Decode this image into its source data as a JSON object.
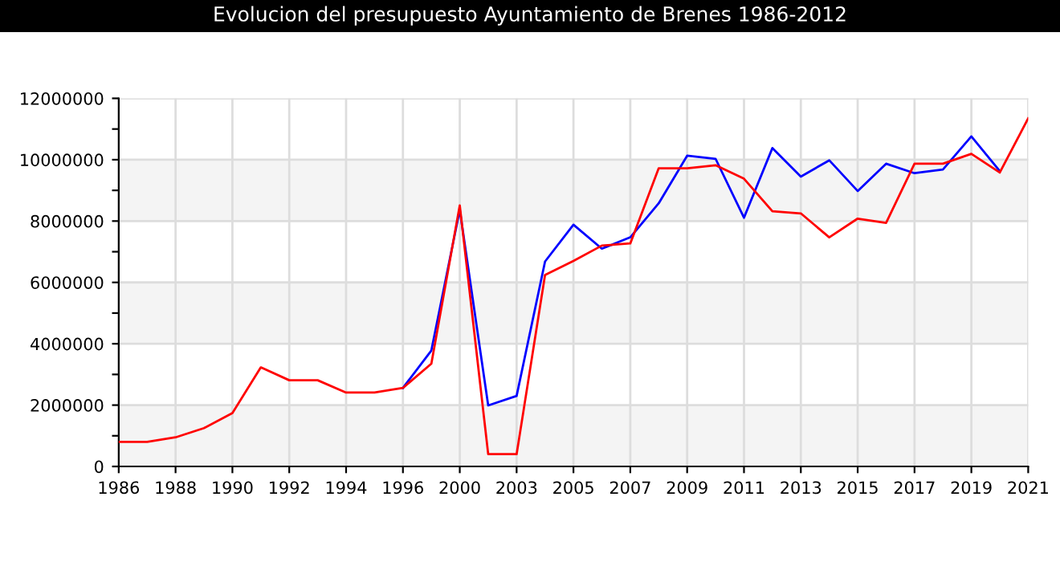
{
  "chart_data": {
    "type": "line",
    "title": "Evolucion del presupuesto Ayuntamiento de Brenes 1986-2012",
    "categories": [
      "1986",
      null,
      "1988",
      null,
      "1990",
      null,
      "1992",
      null,
      "1994",
      null,
      "1996",
      null,
      "2000",
      null,
      "2003",
      null,
      "2005",
      null,
      "2007",
      null,
      "2009",
      null,
      "2011",
      null,
      "2013",
      null,
      "2015",
      null,
      "2017",
      null,
      "2019",
      null,
      "2021"
    ],
    "series": [
      {
        "color": "#0000ff",
        "values": [
          null,
          null,
          null,
          null,
          null,
          null,
          null,
          null,
          null,
          null,
          2560000,
          3780000,
          8370000,
          1990000,
          2300000,
          6680000,
          7880000,
          7100000,
          7470000,
          8580000,
          10130000,
          10030000,
          8110000,
          10380000,
          9450000,
          9980000,
          8980000,
          9870000,
          9560000,
          9680000,
          10760000,
          9630000,
          null
        ]
      },
      {
        "color": "#ff0000",
        "values": [
          800000,
          800000,
          950000,
          1250000,
          1740000,
          3230000,
          2810000,
          2810000,
          2410000,
          2410000,
          2560000,
          3350000,
          8510000,
          400000,
          400000,
          6240000,
          6700000,
          7200000,
          7270000,
          9720000,
          9720000,
          9820000,
          9380000,
          8320000,
          8250000,
          7470000,
          8080000,
          7940000,
          9870000,
          9870000,
          10190000,
          9580000,
          11350000
        ]
      }
    ],
    "ylim": [
      0,
      12000000
    ],
    "yticks": [
      0,
      {
        "value": 1000000,
        "label": null
      },
      2000000,
      {
        "value": 3000000,
        "label": null
      },
      4000000,
      {
        "value": 5000000,
        "label": null
      },
      6000000,
      {
        "value": 7000000,
        "label": null
      },
      8000000,
      {
        "value": 9000000,
        "label": null
      },
      10000000,
      {
        "value": 11000000,
        "label": null
      },
      12000000
    ],
    "bands": [
      {
        "axis": "y",
        "from": 0,
        "to": 2000000,
        "color": "#f4f4f4"
      },
      {
        "axis": "y",
        "from": 4000000,
        "to": 6000000,
        "color": "#f4f4f4"
      },
      {
        "axis": "y",
        "from": 8000000,
        "to": 10000000,
        "color": "#f4f4f4"
      }
    ],
    "grid": true,
    "marker": "none",
    "line_style": "solid"
  }
}
